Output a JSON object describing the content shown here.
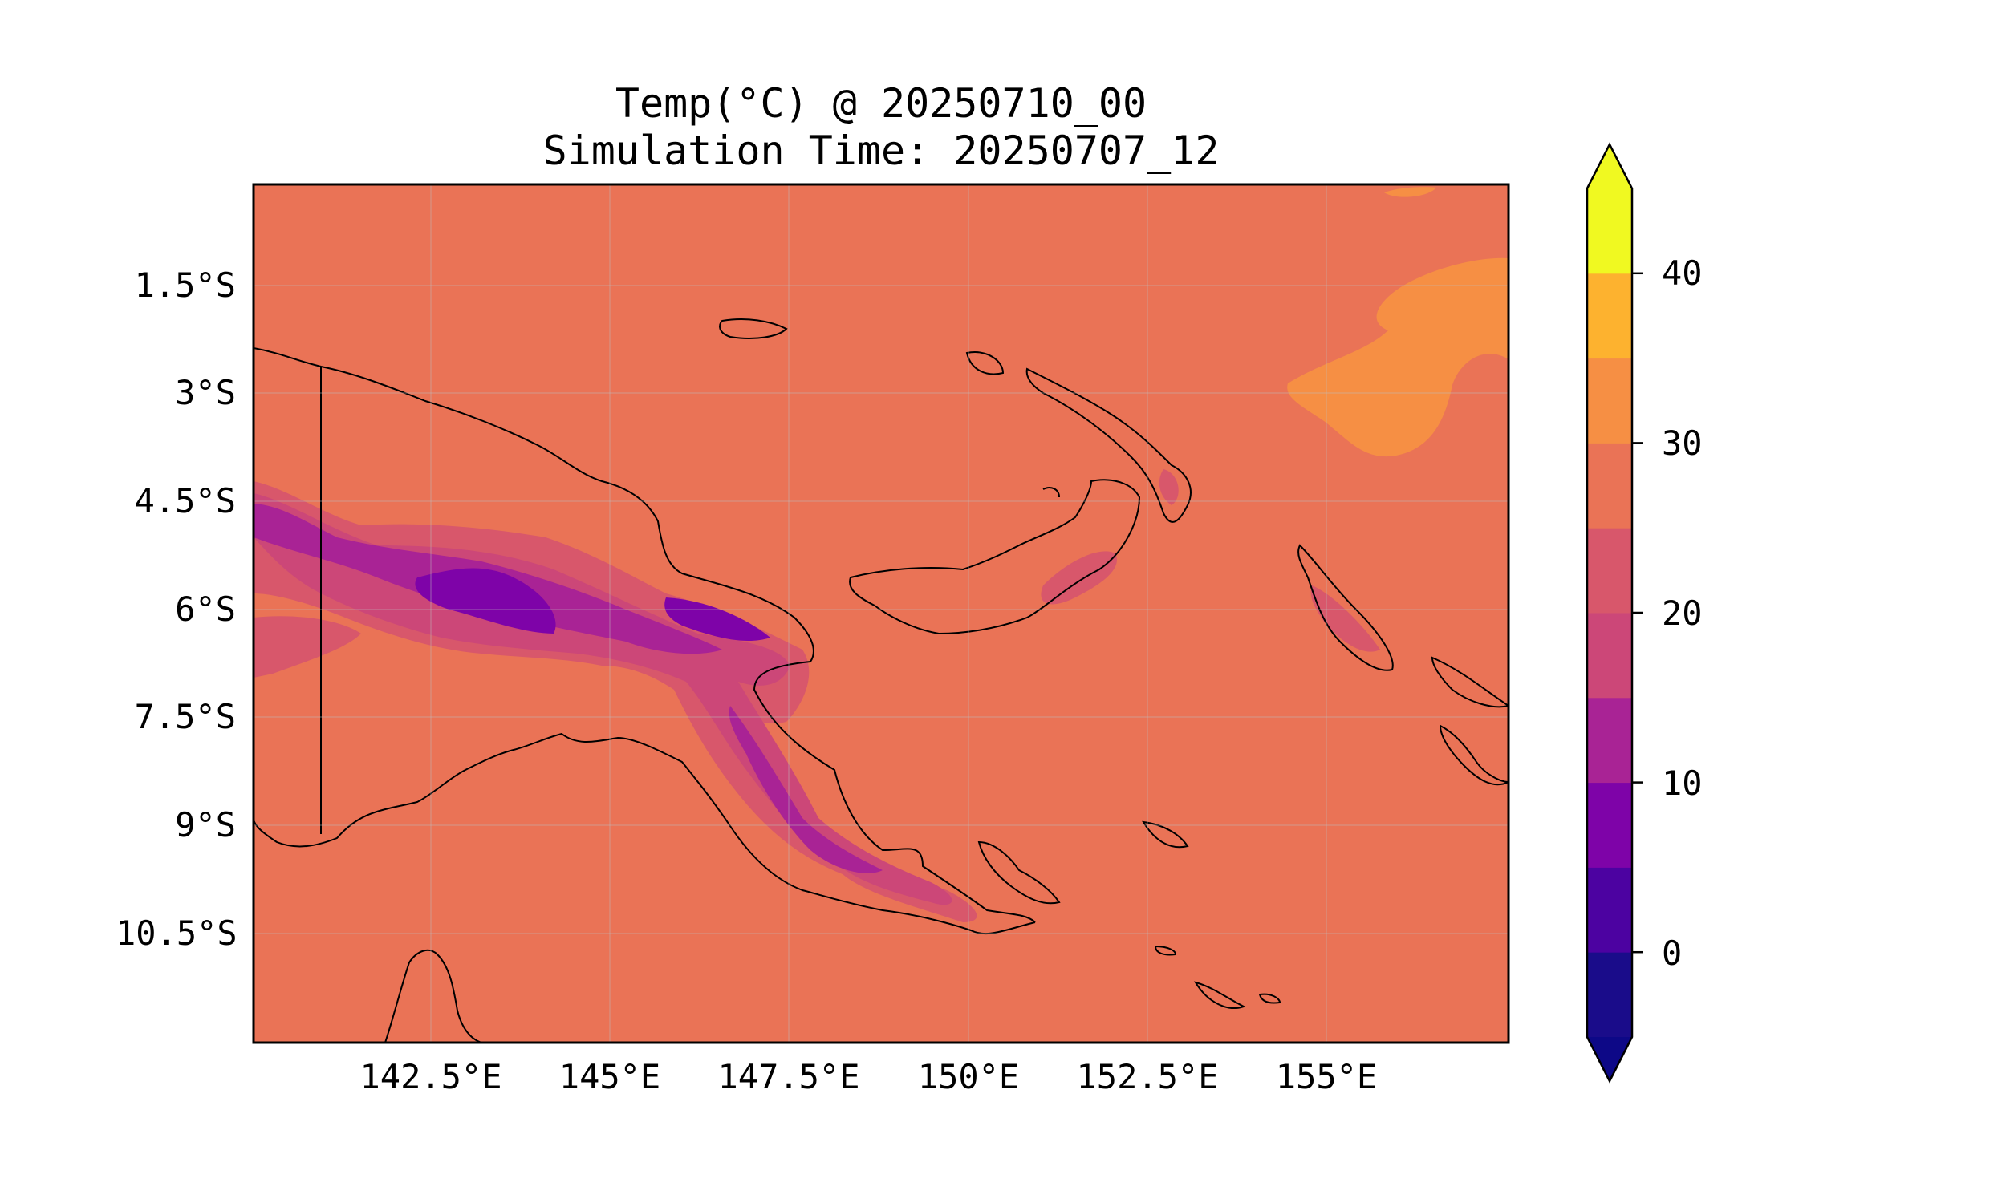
{
  "title": {
    "line1": "Temp(°C) @ 20250710_00",
    "line2": "Simulation Time: 20250707_12"
  },
  "map": {
    "region": "Papua New Guinea",
    "projection": "PlateCarree",
    "lon_range": [
      140.0,
      157.5
    ],
    "lat_range": [
      -12.0,
      -0.0
    ],
    "gridlines": true,
    "background_value_c": 28,
    "x_ticks": [
      "142.5°E",
      "145°E",
      "147.5°E",
      "150°E",
      "152.5°E",
      "155°E"
    ],
    "y_ticks": [
      "1.5°S",
      "3°S",
      "4.5°S",
      "6°S",
      "7.5°S",
      "9°S",
      "10.5°S"
    ]
  },
  "colorbar": {
    "ticks": [
      "0",
      "10",
      "20",
      "30",
      "40"
    ],
    "extend": "both",
    "colormap": "plasma",
    "levels": [
      -5,
      0,
      5,
      10,
      15,
      20,
      25,
      30,
      35,
      40,
      45
    ],
    "colors": [
      "#1a0c8a",
      "#4c02a1",
      "#7e03a8",
      "#a92395",
      "#cc4778",
      "#d8576b",
      "#ea7356",
      "#f68f44",
      "#fdb22f",
      "#f0f921"
    ],
    "under_color": "#0d0887",
    "over_color": "#f0f921",
    "edge_color": "#000000"
  },
  "colors": {
    "base_temp": "#ea7356",
    "warm": "#f68f44",
    "hot": "#fdb22f",
    "cool_1": "#d8576b",
    "cool_2": "#cc4778",
    "cold_1": "#a92395",
    "cold_2": "#7e03a8",
    "coastline": "#000000"
  }
}
